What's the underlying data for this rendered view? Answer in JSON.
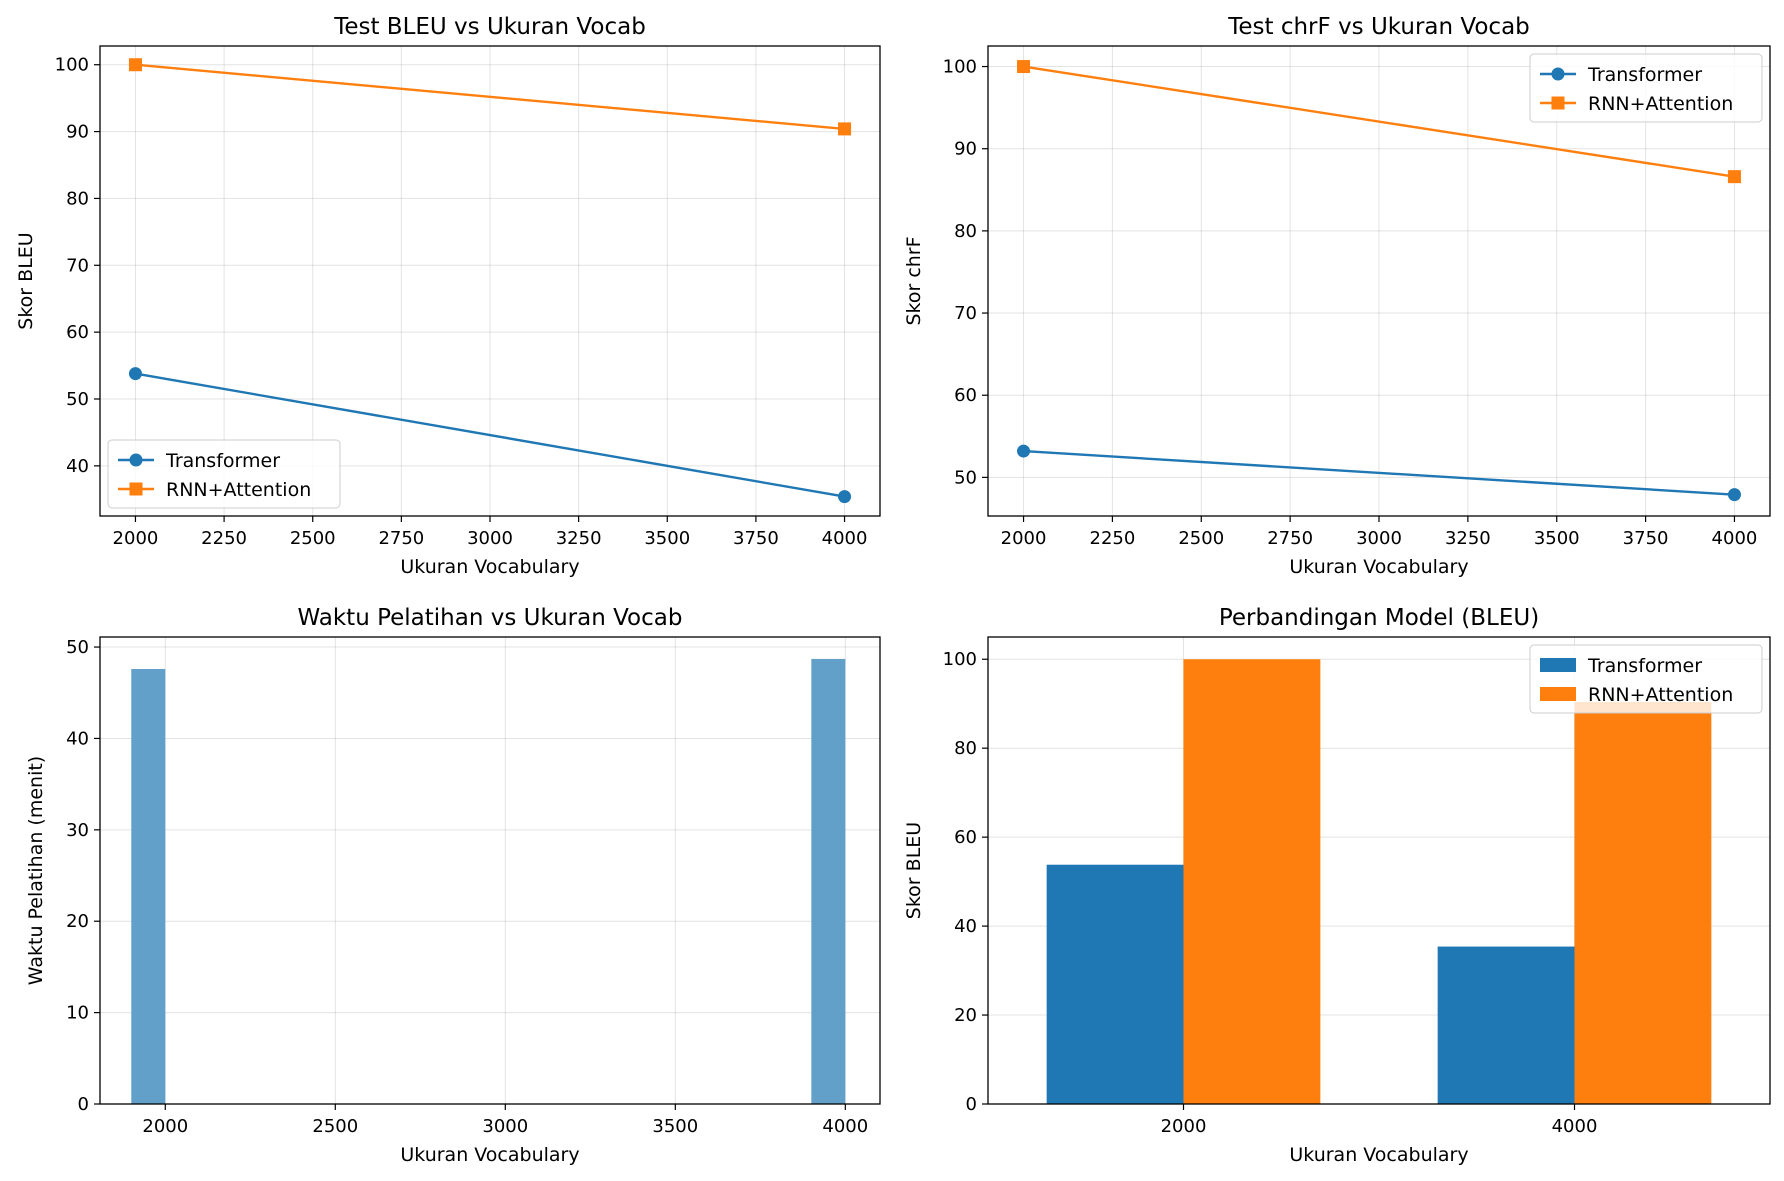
{
  "colors": {
    "transformer": "#1f77b4",
    "rnn": "#ff7f0e",
    "bar_single": "#62a0ca"
  },
  "chart_data": [
    {
      "type": "line",
      "title": "Test BLEU vs Ukuran Vocab",
      "xlabel": "Ukuran Vocabulary",
      "ylabel": "Skor BLEU",
      "x": [
        2000,
        4000
      ],
      "xlim": [
        1900,
        4100
      ],
      "ylim": [
        32.5,
        102.8
      ],
      "xticks": [
        2000,
        2250,
        2500,
        2750,
        3000,
        3250,
        3500,
        3750,
        4000
      ],
      "yticks": [
        40,
        50,
        60,
        70,
        80,
        90,
        100
      ],
      "grid": true,
      "legend": "lower-left",
      "series": [
        {
          "name": "Transformer",
          "values": [
            53.8,
            35.4
          ],
          "marker": "circle"
        },
        {
          "name": "RNN+Attention",
          "values": [
            100.0,
            90.4
          ],
          "marker": "square"
        }
      ]
    },
    {
      "type": "line",
      "title": "Test chrF vs Ukuran Vocab",
      "xlabel": "Ukuran Vocabulary",
      "ylabel": "Skor chrF",
      "x": [
        2000,
        4000
      ],
      "xlim": [
        1900,
        4100
      ],
      "ylim": [
        45.3,
        102.5
      ],
      "xticks": [
        2000,
        2250,
        2500,
        2750,
        3000,
        3250,
        3500,
        3750,
        4000
      ],
      "yticks": [
        50,
        60,
        70,
        80,
        90,
        100
      ],
      "grid": true,
      "legend": "top-right",
      "series": [
        {
          "name": "Transformer",
          "values": [
            53.2,
            47.9
          ],
          "marker": "circle"
        },
        {
          "name": "RNN+Attention",
          "values": [
            100.0,
            86.6
          ],
          "marker": "square"
        }
      ]
    },
    {
      "type": "bar",
      "title": "Waktu Pelatihan vs Ukuran Vocab",
      "xlabel": "Ukuran Vocabulary",
      "ylabel": "Waktu Pelatihan (menit)",
      "x": [
        2000,
        4000
      ],
      "values": [
        47.6,
        48.7
      ],
      "bar_width": 100,
      "xlim": [
        1808,
        4102
      ],
      "ylim": [
        0,
        51.1
      ],
      "xticks": [
        2000,
        2500,
        3000,
        3500,
        4000
      ],
      "yticks": [
        0,
        10,
        20,
        30,
        40,
        50
      ],
      "grid": true
    },
    {
      "type": "bar",
      "title": "Perbandingan Model (BLEU)",
      "xlabel": "Ukuran Vocabulary",
      "ylabel": "Skor BLEU",
      "categories": [
        "2000",
        "4000"
      ],
      "ylim": [
        0,
        105
      ],
      "yticks": [
        0,
        20,
        40,
        60,
        80,
        100
      ],
      "grid": true,
      "legend": "top-right",
      "series": [
        {
          "name": "Transformer",
          "values": [
            53.8,
            35.4
          ]
        },
        {
          "name": "RNN+Attention",
          "values": [
            100.0,
            90.4
          ]
        }
      ]
    }
  ]
}
